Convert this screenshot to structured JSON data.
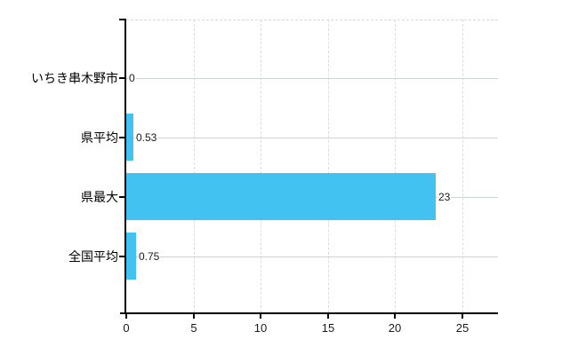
{
  "chart_data": {
    "type": "bar",
    "orientation": "horizontal",
    "title": "",
    "xlabel": "",
    "ylabel": "",
    "categories": [
      "いちき串木野市",
      "県平均",
      "県最大",
      "全国平均"
    ],
    "values": [
      0,
      0.53,
      23,
      0.75
    ],
    "value_labels": [
      "0",
      "0.53",
      "23",
      "0.75"
    ],
    "x_ticks": [
      0,
      5,
      10,
      15,
      20,
      25
    ],
    "x_tick_labels": [
      "0",
      "5",
      "10",
      "15",
      "20",
      "25"
    ],
    "xlim": [
      0,
      27.6
    ],
    "grid": "on",
    "legend": "none",
    "bar_color": "#41c2f0",
    "h_gridline_color": "#ccd5cc",
    "v_gridline_color": "#dcdcdc",
    "axis_color": "#000000",
    "background_color": "#ffffff"
  }
}
